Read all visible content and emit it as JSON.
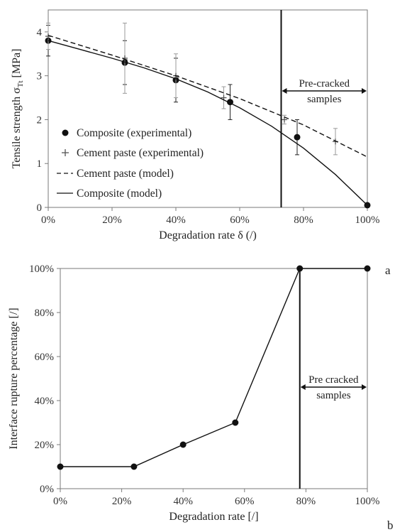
{
  "chart_data": [
    {
      "type": "line",
      "panel_label": "a",
      "xlabel": "Degradation rate δ (/)",
      "ylabel": "Tensile strength σ",
      "ylabel_sub": "Tt",
      "ylabel_unit": " [MPa]",
      "xlim": [
        0,
        100
      ],
      "ylim": [
        0,
        4.5
      ],
      "x_ticks": [
        0,
        20,
        40,
        60,
        80,
        100
      ],
      "x_tick_labels": [
        "0%",
        "20%",
        "40%",
        "60%",
        "80%",
        "100%"
      ],
      "y_ticks": [
        0,
        1,
        2,
        3,
        4
      ],
      "y_tick_labels": [
        "0",
        "1",
        "2",
        "3",
        "4"
      ],
      "grid": false,
      "legend_position": "bottom-left",
      "series": [
        {
          "name": "Composite (experimental)",
          "kind": "markers",
          "marker": "circle",
          "points": [
            {
              "x": 0,
              "y": 3.8
            },
            {
              "x": 24,
              "y": 3.3
            },
            {
              "x": 40,
              "y": 2.9
            },
            {
              "x": 57,
              "y": 2.4
            },
            {
              "x": 78,
              "y": 1.6
            },
            {
              "x": 100,
              "y": 0.05
            }
          ]
        },
        {
          "name": "Cement paste (experimental)",
          "kind": "markers",
          "marker": "plus",
          "points": [
            {
              "x": 0,
              "y": 3.9,
              "err": 0.3
            },
            {
              "x": 24,
              "y": 3.4,
              "err": 0.8
            },
            {
              "x": 40,
              "y": 3.0,
              "err": 0.5
            },
            {
              "x": 55,
              "y": 2.5,
              "err": 0.25
            },
            {
              "x": 74,
              "y": 2.0,
              "err": 0.1
            },
            {
              "x": 90,
              "y": 1.5,
              "err": 0.3
            }
          ]
        },
        {
          "name": "Cement paste (model)",
          "kind": "line",
          "dash": true,
          "points": [
            {
              "x": 0,
              "y": 3.92
            },
            {
              "x": 20,
              "y": 3.47
            },
            {
              "x": 40,
              "y": 3.0
            },
            {
              "x": 60,
              "y": 2.48
            },
            {
              "x": 80,
              "y": 1.88
            },
            {
              "x": 100,
              "y": 1.15
            }
          ]
        },
        {
          "name": "Composite (model)",
          "kind": "line",
          "dash": false,
          "points": [
            {
              "x": 0,
              "y": 3.8
            },
            {
              "x": 10,
              "y": 3.6
            },
            {
              "x": 20,
              "y": 3.4
            },
            {
              "x": 30,
              "y": 3.18
            },
            {
              "x": 40,
              "y": 2.93
            },
            {
              "x": 50,
              "y": 2.63
            },
            {
              "x": 60,
              "y": 2.27
            },
            {
              "x": 70,
              "y": 1.85
            },
            {
              "x": 80,
              "y": 1.35
            },
            {
              "x": 90,
              "y": 0.75
            },
            {
              "x": 100,
              "y": 0.05
            }
          ]
        }
      ],
      "errorbars_composite": [
        {
          "x": 0,
          "y": 3.8,
          "err": 0.35
        },
        {
          "x": 24,
          "y": 3.3,
          "err": 0.5
        },
        {
          "x": 40,
          "y": 2.9,
          "err": 0.5
        },
        {
          "x": 57,
          "y": 2.4,
          "err": 0.4
        },
        {
          "x": 78,
          "y": 1.6,
          "err": 0.4
        }
      ],
      "vline_x": 73,
      "annotation": {
        "line1": "Pre-cracked",
        "line2": "samples",
        "x_from": 73,
        "x_to": 100
      }
    },
    {
      "type": "line",
      "panel_label": "b",
      "xlabel": "Degradation rate [/]",
      "ylabel": "Interface rupture percentage [/]",
      "xlim": [
        0,
        100
      ],
      "ylim": [
        0,
        100
      ],
      "x_ticks": [
        0,
        20,
        40,
        60,
        80,
        100
      ],
      "x_tick_labels": [
        "0%",
        "20%",
        "40%",
        "60%",
        "80%",
        "100%"
      ],
      "y_ticks": [
        0,
        20,
        40,
        60,
        80,
        100
      ],
      "y_tick_labels": [
        "0%",
        "20%",
        "40%",
        "60%",
        "80%",
        "100%"
      ],
      "grid": false,
      "series": [
        {
          "kind": "line-markers",
          "marker": "circle",
          "points": [
            {
              "x": 0,
              "y": 10
            },
            {
              "x": 24,
              "y": 10
            },
            {
              "x": 40,
              "y": 20
            },
            {
              "x": 57,
              "y": 30
            },
            {
              "x": 78,
              "y": 100
            },
            {
              "x": 100,
              "y": 100
            }
          ]
        }
      ],
      "vline_x": 78,
      "annotation": {
        "line1": "Pre cracked",
        "line2": "samples",
        "x_from": 78,
        "x_to": 100
      }
    }
  ]
}
